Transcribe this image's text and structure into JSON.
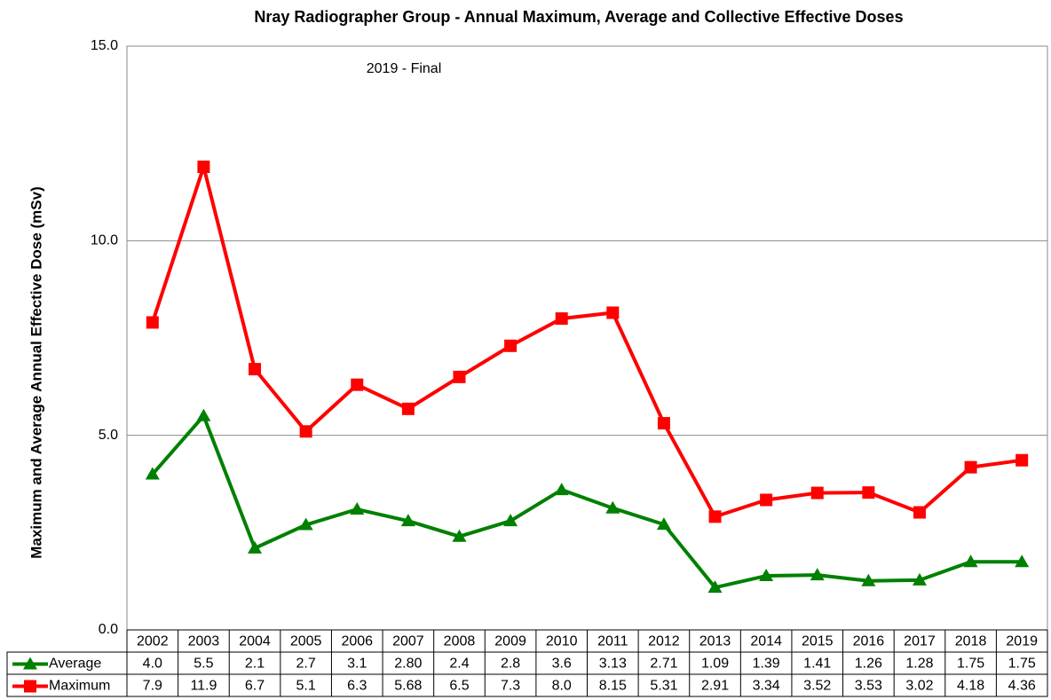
{
  "chart_data": {
    "type": "line",
    "title": "Nray Radiographer Group - Annual Maximum, Average and Collective Effective Doses",
    "annotation": "2019 - Final",
    "y_label": "Maximum and Average Annual Effective Dose (mSv)",
    "categories": [
      "2002",
      "2003",
      "2004",
      "2005",
      "2006",
      "2007",
      "2008",
      "2009",
      "2010",
      "2011",
      "2012",
      "2013",
      "2014",
      "2015",
      "2016",
      "2017",
      "2018",
      "2019"
    ],
    "series": [
      {
        "name": "Average",
        "color": "#008000",
        "marker": "triangle",
        "values": [
          4.0,
          5.5,
          2.1,
          2.7,
          3.1,
          2.8,
          2.4,
          2.8,
          3.6,
          3.13,
          2.71,
          1.09,
          1.39,
          1.41,
          1.26,
          1.28,
          1.75,
          1.75
        ],
        "value_labels": [
          "4.0",
          "5.5",
          "2.1",
          "2.7",
          "3.1",
          "2.80",
          "2.4",
          "2.8",
          "3.6",
          "3.13",
          "2.71",
          "1.09",
          "1.39",
          "1.41",
          "1.26",
          "1.28",
          "1.75",
          "1.75"
        ]
      },
      {
        "name": "Maximum",
        "color": "#ff0000",
        "marker": "square",
        "values": [
          7.9,
          11.9,
          6.7,
          5.1,
          6.3,
          5.68,
          6.5,
          7.3,
          8.0,
          8.15,
          5.31,
          2.91,
          3.34,
          3.52,
          3.53,
          3.02,
          4.18,
          4.36
        ],
        "value_labels": [
          "7.9",
          "11.9",
          "6.7",
          "5.1",
          "6.3",
          "5.68",
          "6.5",
          "7.3",
          "8.0",
          "8.15",
          "5.31",
          "2.91",
          "3.34",
          "3.52",
          "3.53",
          "3.02",
          "4.18",
          "4.36"
        ]
      }
    ],
    "ylim": [
      0,
      15
    ],
    "yticks": [
      {
        "value": 0,
        "label": "0.0"
      },
      {
        "value": 5,
        "label": "5.0"
      },
      {
        "value": 10,
        "label": "10.0"
      },
      {
        "value": 15,
        "label": "15.0"
      }
    ],
    "grid": true
  }
}
